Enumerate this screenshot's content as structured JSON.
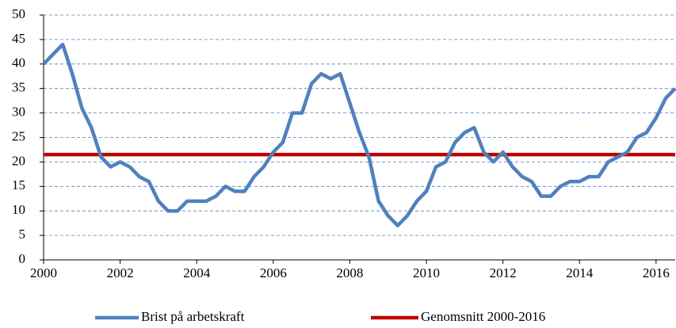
{
  "chart_data": {
    "type": "line",
    "x": [
      2000,
      2000.25,
      2000.5,
      2000.75,
      2001,
      2001.25,
      2001.5,
      2001.75,
      2002,
      2002.25,
      2002.5,
      2002.75,
      2003,
      2003.25,
      2003.5,
      2003.75,
      2004,
      2004.25,
      2004.5,
      2004.75,
      2005,
      2005.25,
      2005.5,
      2005.75,
      2006,
      2006.25,
      2006.5,
      2006.75,
      2007,
      2007.25,
      2007.5,
      2007.75,
      2008,
      2008.25,
      2008.5,
      2008.75,
      2009,
      2009.25,
      2009.5,
      2009.75,
      2010,
      2010.25,
      2010.5,
      2010.75,
      2011,
      2011.25,
      2011.5,
      2011.75,
      2012,
      2012.25,
      2012.5,
      2012.75,
      2013,
      2013.25,
      2013.5,
      2013.75,
      2014,
      2014.25,
      2014.5,
      2014.75,
      2015,
      2015.25,
      2015.5,
      2015.75,
      2016,
      2016.25,
      2016.5
    ],
    "series": [
      {
        "name": "Brist på arbetskraft",
        "color": "#4f81bd",
        "values": [
          40,
          42,
          44,
          38,
          31,
          27,
          21,
          19,
          20,
          19,
          17,
          16,
          12,
          10,
          10,
          12,
          12,
          12,
          13,
          15,
          14,
          14,
          17,
          19,
          22,
          24,
          30,
          30,
          36,
          38,
          37,
          38,
          32,
          26,
          21,
          12,
          9,
          7,
          9,
          12,
          14,
          19,
          20,
          24,
          26,
          27,
          22,
          20,
          22,
          19,
          17,
          16,
          13,
          13,
          15,
          16,
          16,
          17,
          17,
          20,
          21,
          22,
          25,
          26,
          29,
          33,
          35
        ]
      }
    ],
    "reference_line": {
      "name": "Genomsnitt 2000-2016",
      "color": "#c00000",
      "value": 21.5
    },
    "xlim": [
      2000,
      2016.5
    ],
    "xticks": [
      2000,
      2002,
      2004,
      2006,
      2008,
      2010,
      2012,
      2014,
      2016
    ],
    "ylim": [
      0,
      50
    ],
    "yticks": [
      0,
      5,
      10,
      15,
      20,
      25,
      30,
      35,
      40,
      45,
      50
    ],
    "grid": true,
    "legend": "bottom"
  }
}
